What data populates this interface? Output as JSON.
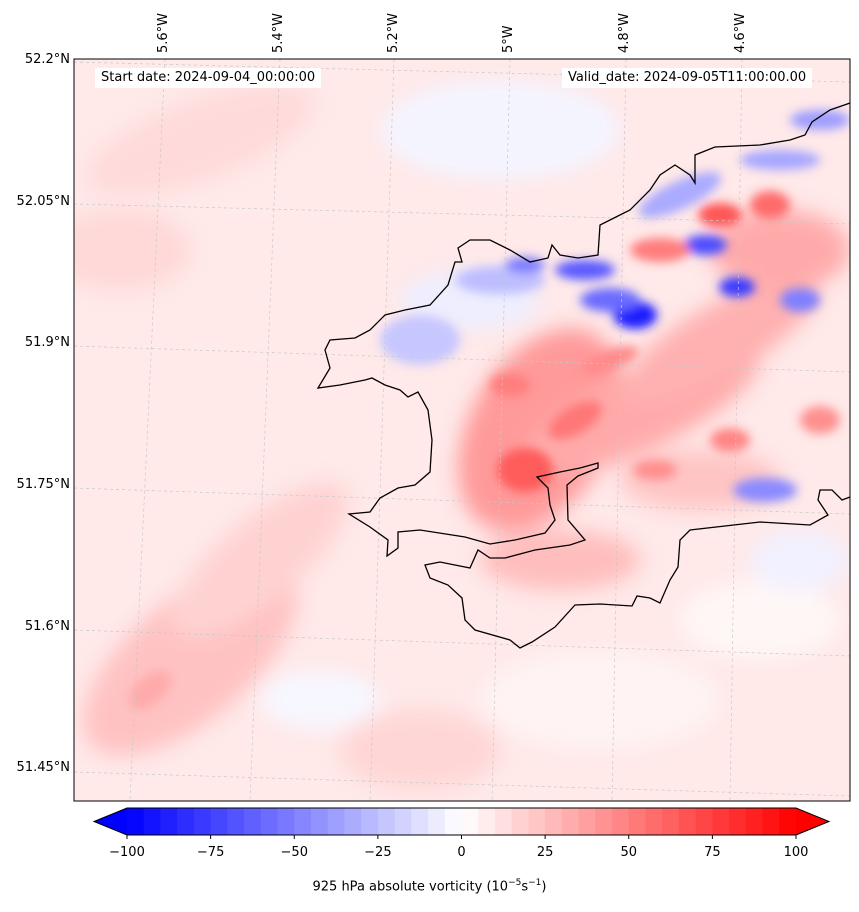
{
  "header": {
    "start_date": "Start date: 2024-09-04_00:00:00",
    "valid_date": "Valid_date: 2024-09-05T11:00:00.00"
  },
  "lon_labels": [
    "5.6°W",
    "5.4°W",
    "5.2°W",
    "5°W",
    "4.8°W",
    "4.6°W"
  ],
  "lat_labels": [
    "52.2°N",
    "52.05°N",
    "51.9°N",
    "51.75°N",
    "51.6°N",
    "51.45°N"
  ],
  "colorbar": {
    "ticks": [
      "−100",
      "−75",
      "−50",
      "−25",
      "0",
      "25",
      "50",
      "75",
      "100"
    ],
    "label_prefix": "925 hPa absolute vorticity (10",
    "label_exp1": "−5",
    "label_mid": "s",
    "label_exp2": "−1",
    "label_suffix": ")",
    "min": -100,
    "max": 100,
    "colormap": "bwr",
    "extend": "both"
  },
  "map": {
    "variable": "925 hPa absolute vorticity",
    "land_outline_color": "#000000",
    "gridlines": "dashed-light-grey"
  }
}
